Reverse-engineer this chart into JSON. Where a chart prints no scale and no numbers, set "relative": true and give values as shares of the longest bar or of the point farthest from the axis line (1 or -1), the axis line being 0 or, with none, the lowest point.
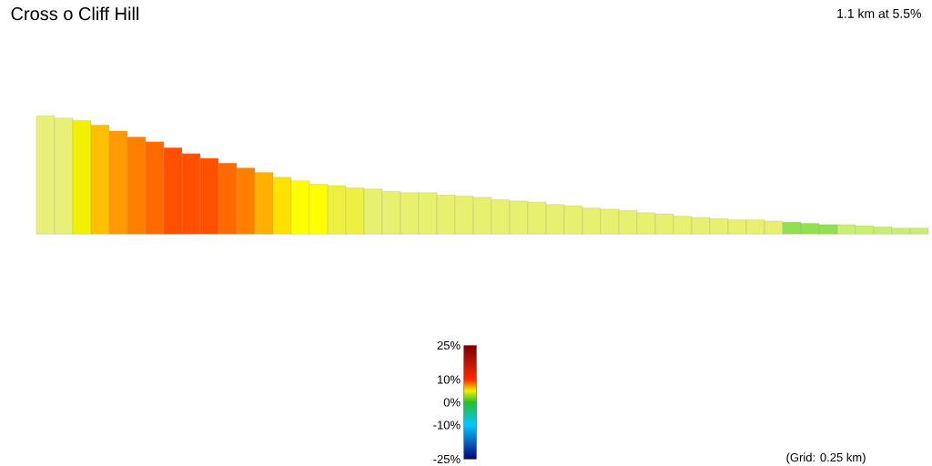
{
  "chart_data": {
    "type": "bar",
    "title": "Cross o Cliff Hill",
    "subtitle": "1.1 km at 5.5%",
    "annotations": [
      "(Grid: 0.25 km)"
    ],
    "relative": true,
    "categories": [
      null,
      null,
      null,
      null,
      null,
      null,
      null,
      null,
      null,
      null,
      null,
      null,
      null,
      null,
      null,
      null,
      null,
      null,
      null,
      null,
      null,
      null,
      null,
      null,
      null,
      null,
      null,
      null,
      null,
      null,
      null,
      null,
      null,
      null,
      null,
      null,
      null,
      null,
      null,
      null,
      null,
      null,
      null,
      null,
      null,
      null,
      null,
      null,
      null
    ],
    "values": [
      1.0,
      0.98,
      0.96,
      0.92,
      0.87,
      0.82,
      0.78,
      0.73,
      0.68,
      0.64,
      0.6,
      0.56,
      0.52,
      0.48,
      0.45,
      0.42,
      0.41,
      0.39,
      0.38,
      0.36,
      0.35,
      0.35,
      0.33,
      0.32,
      0.31,
      0.29,
      0.28,
      0.27,
      0.25,
      0.24,
      0.22,
      0.21,
      0.2,
      0.18,
      0.17,
      0.15,
      0.14,
      0.13,
      0.12,
      0.12,
      0.11,
      0.1,
      0.09,
      0.08,
      0.08,
      0.07,
      0.06,
      0.05,
      0.05
    ],
    "colors": [
      "#e8f07a",
      "#e8f07a",
      "#f0f000",
      "#ffc000",
      "#ff9900",
      "#ff8000",
      "#ff6a00",
      "#ff5000",
      "#ff5000",
      "#ff5000",
      "#ff6a00",
      "#ff8000",
      "#ffb000",
      "#ffe000",
      "#ffff00",
      "#ffff00",
      "#eef040",
      "#eef040",
      "#e8f070",
      "#e8f070",
      "#e8f070",
      "#e8f070",
      "#e8f070",
      "#e8f070",
      "#e8f070",
      "#e8f070",
      "#e8f070",
      "#e8f070",
      "#e8f070",
      "#e8f070",
      "#e8f070",
      "#e8f070",
      "#e8f070",
      "#e8f070",
      "#e8f070",
      "#e8f070",
      "#e8f070",
      "#e8f070",
      "#e8f070",
      "#e8f070",
      "#e8f070",
      "#90e050",
      "#90e050",
      "#90e050",
      "#c8f070",
      "#c8f070",
      "#c8f070",
      "#c8f070",
      "#c8f070"
    ],
    "clim": [
      -25,
      25
    ],
    "cticks": [
      {
        "value": 25,
        "label": "25%"
      },
      {
        "value": 10,
        "label": "10%"
      },
      {
        "value": 0,
        "label": "0%"
      },
      {
        "value": -10,
        "label": "-10%"
      },
      {
        "value": -25,
        "label": "-25%"
      }
    ]
  }
}
